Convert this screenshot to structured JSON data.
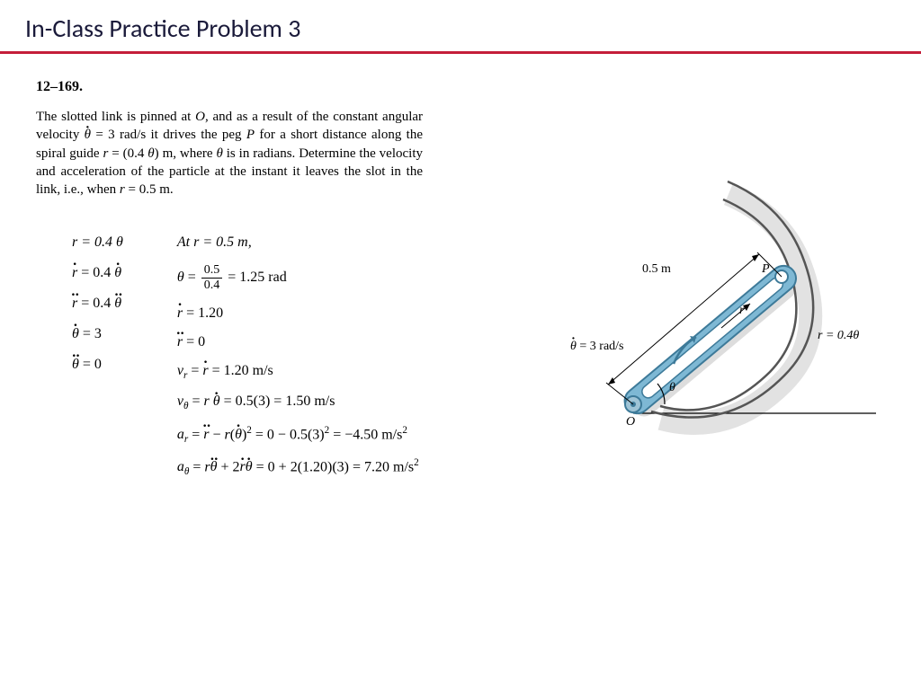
{
  "slide": {
    "title": "In-Class Practice Problem 3",
    "divider_color": "#c41e3a",
    "title_color": "#1a1a3a"
  },
  "problem": {
    "number": "12–169.",
    "statement_html": "The slotted link is pinned at <i>O</i>, and as a result of the constant angular velocity <span class='dot-over'><i>θ</i></span> = 3 rad/s it drives the peg <i>P</i> for a short distance along the spiral guide <i>r</i> = (0.4 <i>θ</i>) m, where <i>θ</i> is in radians. Determine the velocity and acceleration of the particle at the instant it leaves the slot in the link, i.e., when <i>r</i> = 0.5 m."
  },
  "left_column": {
    "r_eq": "r = 0.4 θ",
    "rdot_eq_html": "<span class='dot-over'><i>r</i></span> = 0.4 <span class='dot-over'><i>θ</i></span>",
    "rddot_eq_html": "<span class='ddot-over'><i>r</i></span> = 0.4 <span class='ddot-over'><i>θ</i></span>",
    "thetadot_eq_html": "<span class='dot-over'><i>θ</i></span> = 3",
    "thetaddot_eq_html": "<span class='ddot-over'><i>θ</i></span> = 0"
  },
  "right_column": {
    "at_r": "At r = 0.5 m,",
    "theta_frac_num": "0.5",
    "theta_frac_den": "0.4",
    "theta_result": " = 1.25 rad",
    "rdot_val_html": "<span class='dot-over'><i>r</i></span> = 1.20",
    "rddot_val_html": "<span class='ddot-over'><i>r</i></span> = 0",
    "vr_html": "<i>v<sub>r</sub></i> = <span class='dot-over'><i>r</i></span> = 1.20 m/s",
    "vtheta_html": "<i>v<sub>θ</sub></i> = <i>r</i> <span class='dot-over'><i>θ</i></span> = 0.5(3) = 1.50 m/s",
    "ar_html": "<i>a<sub>r</sub></i> = <span class='ddot-over'><i>r</i></span> − <i>r</i>(<span class='dot-over'><i>θ</i></span>)<sup>2</sup> = 0 − 0.5(3)<sup>2</sup> = −4.50 m/s<sup>2</sup>",
    "atheta_html": "<i>a<sub>θ</sub></i> = <i>r</i><span class='ddot-over'><i>θ</i></span> + 2<span class='dot-over'><i>r</i></span><span class='dot-over'><i>θ</i></span> = 0 + 2(1.20)(3) = 7.20 m/s<sup>2</sup>"
  },
  "figure": {
    "label_05m": "0.5 m",
    "label_P": "P",
    "label_r": "r",
    "label_thetadot_html": "<span class='dot-over'><i>θ</i></span> = 3 rad/s",
    "label_theta": "θ",
    "label_O": "O",
    "label_r04theta": "r = 0.4θ",
    "link_color": "#7eb8d4",
    "link_stroke": "#3d7a99",
    "spiral_stroke": "#555555",
    "shadow_color": "#cfcfcf",
    "pin_fill": "#9fc4d6"
  }
}
